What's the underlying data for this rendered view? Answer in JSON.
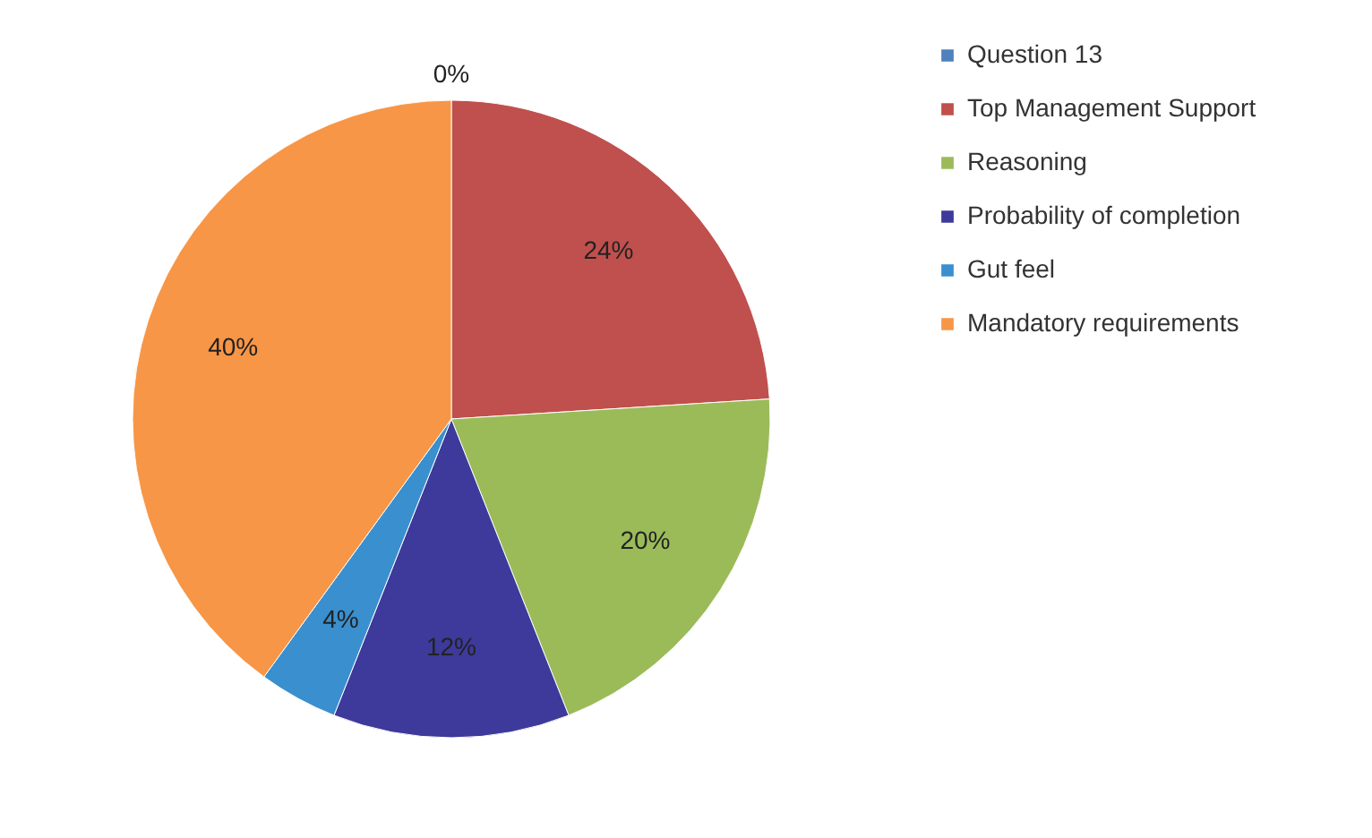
{
  "chart_data": {
    "type": "pie",
    "categories": [
      "Question 13",
      "Top Management Support",
      "Reasoning",
      "Probability of completion",
      "Gut feel",
      "Mandatory requirements"
    ],
    "values": [
      0,
      24,
      20,
      12,
      4,
      40
    ],
    "value_labels": [
      "0%",
      "24%",
      "20%",
      "12%",
      "4%",
      "40%"
    ],
    "colors": [
      "#4f81bd",
      "#c0504d",
      "#9bbb59",
      "#3d3a9b",
      "#3a8fcf",
      "#f79646"
    ],
    "legend": "right"
  }
}
